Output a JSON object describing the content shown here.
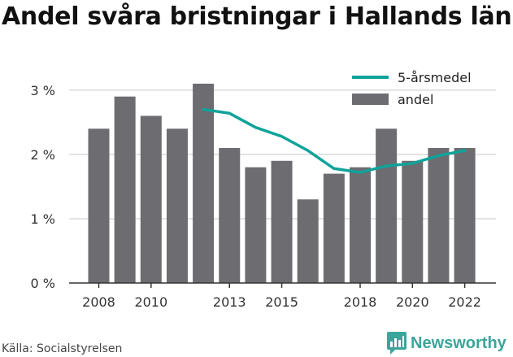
{
  "title": "Andel svåra bristningar i Hallands län",
  "source": "Källa: Socialstyrelsen",
  "brand": {
    "name": "Newsworthy",
    "logo_icon": "newsworthy-chart-icon"
  },
  "colors": {
    "bar": "#6d6c71",
    "line": "#0fa39a",
    "grid": "#c8c8c8",
    "axis": "#333333",
    "brand": "#3aa69a"
  },
  "chart_data": {
    "type": "bar",
    "years": [
      2008,
      2009,
      2010,
      2011,
      2012,
      2013,
      2014,
      2015,
      2016,
      2017,
      2018,
      2019,
      2020,
      2021,
      2022
    ],
    "series": [
      {
        "name": "andel",
        "type": "bar",
        "values": [
          2.4,
          2.9,
          2.6,
          2.4,
          3.1,
          2.1,
          1.8,
          1.9,
          1.3,
          1.7,
          1.8,
          2.4,
          1.9,
          2.1,
          2.1
        ]
      },
      {
        "name": "5-årsmedel",
        "type": "line",
        "values": [
          null,
          null,
          null,
          null,
          2.7,
          2.64,
          2.42,
          2.28,
          2.06,
          1.78,
          1.72,
          1.82,
          1.86,
          1.98,
          2.06
        ]
      }
    ],
    "ylim": [
      0,
      3.2
    ],
    "yticks": [
      {
        "value": 0,
        "label": "0 %"
      },
      {
        "value": 1,
        "label": "1 %"
      },
      {
        "value": 2,
        "label": "2 %"
      },
      {
        "value": 3,
        "label": "3 %"
      }
    ],
    "xtick_years": [
      2008,
      2010,
      2013,
      2015,
      2018,
      2020,
      2022
    ],
    "legend": {
      "position": "top-right",
      "entries": [
        "5-årsmedel",
        "andel"
      ]
    },
    "grid": "horizontal"
  }
}
